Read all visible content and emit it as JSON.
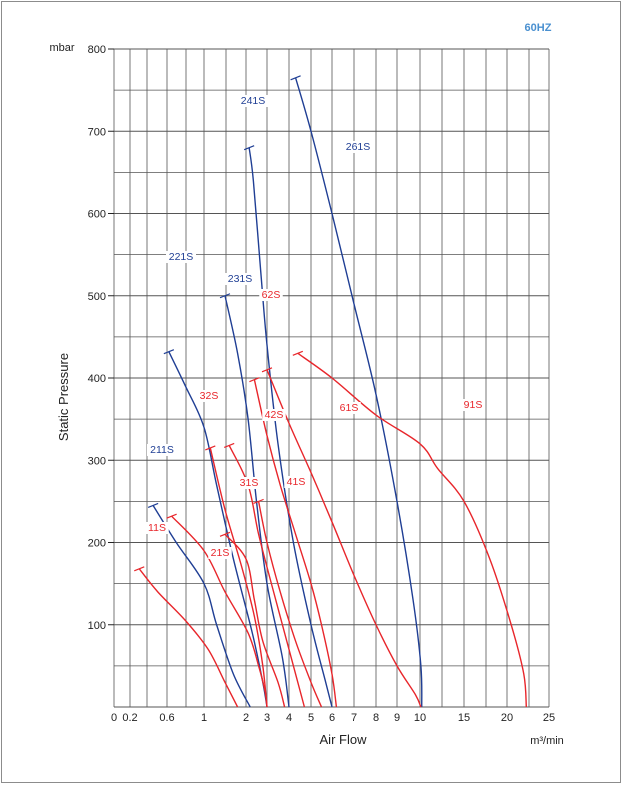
{
  "chart_data": {
    "type": "line",
    "frequency_badge": "60HZ",
    "xlabel": "Air Flow",
    "ylabel": "Static Pressure",
    "x_unit": "m³/min",
    "y_unit": "mbar",
    "x_tick_labels": [
      "0",
      "0.2",
      "0.6",
      "1",
      "2",
      "3",
      "4",
      "5",
      "6",
      "7",
      "8",
      "9",
      "10",
      "15",
      "20",
      "25"
    ],
    "y_tick_labels": [
      "100",
      "200",
      "300",
      "400",
      "500",
      "600",
      "700",
      "800"
    ],
    "ylim": [
      0,
      800
    ],
    "colors": {
      "blue": "#1f3e94",
      "red": "#e8262b",
      "badge": "#4a90d0",
      "grid": "#555555"
    },
    "series": [
      {
        "name": "211S",
        "color": "red_blue",
        "points": [
          [
            0.45,
            245
          ],
          [
            0.7,
            200
          ],
          [
            1.0,
            150
          ],
          [
            1.3,
            100
          ],
          [
            1.7,
            40
          ],
          [
            2.2,
            0
          ]
        ]
      },
      {
        "name": "221S",
        "points": [
          [
            0.62,
            432
          ],
          [
            0.8,
            390
          ],
          [
            1.0,
            340
          ],
          [
            1.3,
            270
          ],
          [
            1.7,
            180
          ],
          [
            2.3,
            90
          ],
          [
            2.8,
            30
          ],
          [
            3.0,
            0
          ]
        ]
      },
      {
        "name": "231S",
        "points": [
          [
            1.5,
            500
          ],
          [
            1.8,
            430
          ],
          [
            2.1,
            350
          ],
          [
            2.5,
            250
          ],
          [
            3.0,
            150
          ],
          [
            3.7,
            60
          ],
          [
            4.0,
            0
          ]
        ]
      },
      {
        "name": "241S",
        "points": [
          [
            2.15,
            680
          ],
          [
            2.35,
            640
          ],
          [
            2.7,
            530
          ],
          [
            3.0,
            440
          ],
          [
            3.5,
            320
          ],
          [
            4.2,
            200
          ],
          [
            5.0,
            100
          ],
          [
            5.7,
            30
          ],
          [
            6.0,
            0
          ]
        ]
      },
      {
        "name": "261S",
        "points": [
          [
            4.3,
            765
          ],
          [
            5.0,
            700
          ],
          [
            6.0,
            600
          ],
          [
            7.0,
            490
          ],
          [
            8.0,
            380
          ],
          [
            9.0,
            250
          ],
          [
            9.7,
            130
          ],
          [
            10.1,
            50
          ],
          [
            10.2,
            0
          ]
        ]
      },
      {
        "name": "11S",
        "points": [
          [
            0.3,
            168
          ],
          [
            0.5,
            140
          ],
          [
            0.8,
            105
          ],
          [
            1.1,
            70
          ],
          [
            1.5,
            30
          ],
          [
            1.8,
            0
          ]
        ]
      },
      {
        "name": "21S",
        "points": [
          [
            0.65,
            232
          ],
          [
            1.0,
            190
          ],
          [
            1.5,
            140
          ],
          [
            2.1,
            90
          ],
          [
            2.6,
            50
          ],
          [
            2.9,
            20
          ],
          [
            3.0,
            0
          ]
        ]
      },
      {
        "name": "31S",
        "points": [
          [
            1.5,
            210
          ],
          [
            2.0,
            180
          ],
          [
            2.4,
            130
          ],
          [
            2.8,
            80
          ],
          [
            3.5,
            30
          ],
          [
            3.8,
            0
          ]
        ]
      },
      {
        "name": "32S",
        "points": [
          [
            1.15,
            315
          ],
          [
            1.5,
            240
          ],
          [
            1.9,
            170
          ],
          [
            2.4,
            110
          ],
          [
            2.8,
            50
          ],
          [
            3.0,
            0
          ]
        ]
      },
      {
        "name": "41S",
        "points": [
          [
            2.6,
            250
          ],
          [
            3.0,
            200
          ],
          [
            3.6,
            140
          ],
          [
            4.3,
            80
          ],
          [
            5.0,
            30
          ],
          [
            5.5,
            0
          ]
        ]
      },
      {
        "name": "42S",
        "points": [
          [
            1.6,
            318
          ],
          [
            2.1,
            270
          ],
          [
            2.6,
            210
          ],
          [
            3.2,
            150
          ],
          [
            3.8,
            90
          ],
          [
            4.4,
            30
          ],
          [
            4.7,
            0
          ]
        ]
      },
      {
        "name": "61S",
        "points": [
          [
            3.0,
            410
          ],
          [
            4.0,
            345
          ],
          [
            5.0,
            285
          ],
          [
            6.0,
            225
          ],
          [
            7.0,
            160
          ],
          [
            8.0,
            100
          ],
          [
            9.0,
            50
          ],
          [
            9.8,
            15
          ],
          [
            10.1,
            0
          ]
        ]
      },
      {
        "name": "62S",
        "points": [
          [
            2.4,
            398
          ],
          [
            3.0,
            330
          ],
          [
            3.6,
            270
          ],
          [
            4.3,
            210
          ],
          [
            5.0,
            150
          ],
          [
            5.5,
            100
          ],
          [
            6.0,
            40
          ],
          [
            6.2,
            0
          ]
        ]
      },
      {
        "name": "91S",
        "points": [
          [
            4.4,
            430
          ],
          [
            6.0,
            400
          ],
          [
            8.0,
            355
          ],
          [
            10.0,
            320
          ],
          [
            12.0,
            290
          ],
          [
            15.0,
            250
          ],
          [
            18.0,
            180
          ],
          [
            20.5,
            100
          ],
          [
            22.0,
            40
          ],
          [
            22.3,
            0
          ]
        ]
      }
    ]
  }
}
